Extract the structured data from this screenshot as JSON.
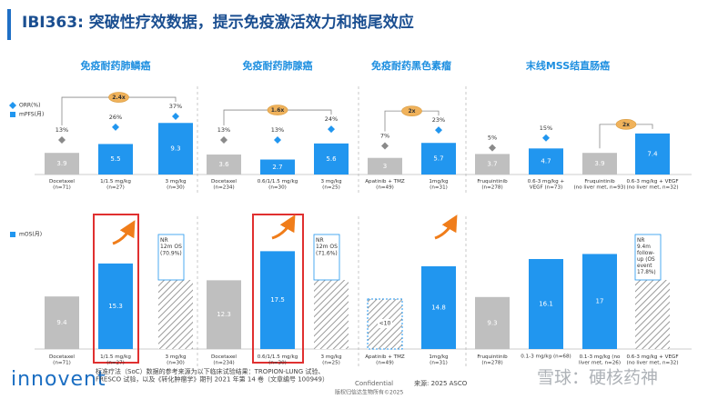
{
  "title": "IBI363: 突破性疗效数据，提示免疫激活效力和拖尾效应",
  "legend_top": {
    "orr": "ORR(%)",
    "mpfs": "mPFS(月)"
  },
  "legend_bottom": "mOS(月)",
  "panels": [
    {
      "title": "免疫耐药肺鳞癌",
      "pfs": [
        {
          "label": "Docetaxel\n(n=71)",
          "mpfs": 3.9,
          "orr": 13,
          "orr_label": "13%",
          "color": "#bfbfbf"
        },
        {
          "label": "1/1.5 mg/kg\n(n=27)",
          "mpfs": 5.5,
          "orr": 26,
          "orr_label": "26%",
          "color": "#2196ef"
        },
        {
          "label": "3 mg/kg\n(n=30)",
          "mpfs": 9.3,
          "orr": 37,
          "orr_label": "37%",
          "color": "#2196ef"
        }
      ],
      "fold": {
        "label": "2.4x",
        "between": [
          0,
          2
        ]
      },
      "os": [
        {
          "label": "Docetaxel\n(n=71)",
          "value": 9.4,
          "color": "#bfbfbf"
        },
        {
          "label": "1/1.5 mg/kg\n(n=27)",
          "value": 15.3,
          "color": "#2196ef"
        },
        {
          "label": "3 mg/kg\n(n=30)",
          "value": null,
          "note": "NR\n12m OS\n(70.9%)"
        }
      ]
    },
    {
      "title": "免疫耐药肺腺癌",
      "pfs": [
        {
          "label": "Docetaxel\n(n=234)",
          "mpfs": 3.6,
          "orr": 13,
          "orr_label": "13%",
          "color": "#bfbfbf"
        },
        {
          "label": "0.6/1/1.5 mg/kg\n(n=30)",
          "mpfs": 2.7,
          "orr": 13,
          "orr_label": "13%",
          "color": "#2196ef"
        },
        {
          "label": "3 mg/kg\n(n=25)",
          "mpfs": 5.6,
          "orr": 24,
          "orr_label": "24%",
          "color": "#2196ef"
        }
      ],
      "fold": {
        "label": "1.6x",
        "between": [
          0,
          2
        ]
      },
      "os": [
        {
          "label": "Docetaxel\n(n=234)",
          "value": 12.3,
          "color": "#bfbfbf"
        },
        {
          "label": "0.6/1/1.5 mg/kg\n(n=30)",
          "value": 17.5,
          "color": "#2196ef"
        },
        {
          "label": "3 mg/kg\n(n=25)",
          "value": null,
          "note": "NR\n12m OS\n(71.6%)"
        }
      ]
    },
    {
      "title": "免疫耐药黑色素瘤",
      "pfs": [
        {
          "label": "Apatinib + TMZ\n(n=49)",
          "mpfs": 3.0,
          "orr": 7,
          "orr_label": "7%",
          "color": "#bfbfbf"
        },
        {
          "label": "1mg/kg\n(n=31)",
          "mpfs": 5.7,
          "orr": 23,
          "orr_label": "23%",
          "color": "#2196ef"
        }
      ],
      "fold": {
        "label": "2x",
        "between": [
          0,
          1
        ]
      },
      "os": [
        {
          "label": "Apatinib + TMZ\n(n=49)",
          "value": null,
          "value_label": "<10"
        },
        {
          "label": "1mg/kg\n(n=31)",
          "value": 14.8,
          "color": "#2196ef"
        }
      ]
    },
    {
      "title": "末线MSS结直肠癌",
      "pfs": [
        {
          "label": "Fruquintinib\n(n=278)",
          "mpfs": 3.7,
          "orr": 5,
          "orr_label": "5%",
          "color": "#bfbfbf"
        },
        {
          "label": "0.6-3 mg/kg +\nVEGF (n=73)",
          "mpfs": 4.7,
          "orr": 15,
          "orr_label": "15%",
          "color": "#2196ef"
        },
        {
          "label": "Fruquintinib\n(no liver met, n=93)",
          "mpfs": 3.9,
          "color": "#bfbfbf"
        },
        {
          "label": "0.6-3 mg/kg + VEGF\n(no liver met, n=32)",
          "mpfs": 7.4,
          "color": "#2196ef"
        }
      ],
      "fold": {
        "label": "2x",
        "between": [
          2,
          3
        ]
      },
      "os": [
        {
          "label": "Fruquintinib\n(n=278)",
          "value": 9.3,
          "color": "#bfbfbf"
        },
        {
          "label": "0.1-3 mg/kg (n=68)",
          "value": 16.1,
          "color": "#2196ef"
        },
        {
          "label": "0.1-3 mg/kg (no\nliver met, n=26)",
          "value": 17.0,
          "color": "#2196ef"
        },
        {
          "label": "0.6-3 mg/kg + VEGF\n(no liver met, n=32)",
          "value": null,
          "note": "NR\n9.4m\nfollow-\nup (OS\nevent\n17.8%)"
        }
      ]
    }
  ],
  "footer": {
    "logo": "innovent",
    "footnote": "标准疗法（SoC）数据的参考来源为以下临床试验结果：TROPION-LUNG 试验、\nFRESCO 试验，以及《转化肿瘤学》期刊 2021 年第 14 卷（文章编号 100949）",
    "confidential": "Confidential",
    "copyright": "版权归信达生物所有©2025",
    "source": "来源: 2025 ASCO",
    "watermark": "雪球：硬核药神"
  }
}
